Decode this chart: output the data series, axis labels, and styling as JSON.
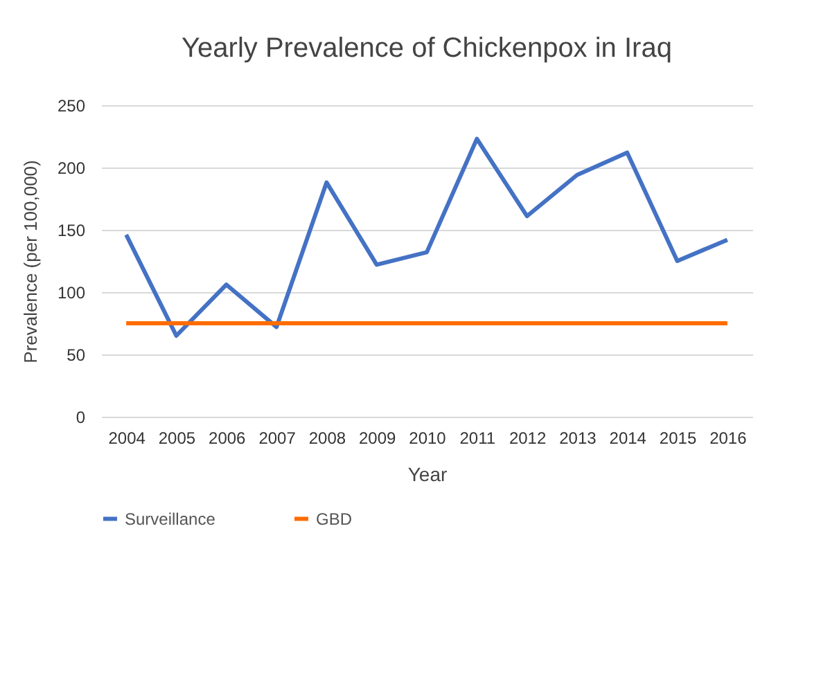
{
  "chart_data": {
    "type": "line",
    "title": "Yearly Prevalence of Chickenpox in Iraq",
    "xlabel": "Year",
    "ylabel": "Prevalence (per 100,000)",
    "categories": [
      "2004",
      "2005",
      "2006",
      "2007",
      "2008",
      "2009",
      "2010",
      "2011",
      "2012",
      "2013",
      "2014",
      "2015",
      "2016"
    ],
    "series": [
      {
        "name": "Surveillance",
        "color": "#4472c4",
        "values": [
          146,
          65,
          106,
          72,
          188,
          122,
          132,
          223,
          161,
          194,
          212,
          125,
          142
        ]
      },
      {
        "name": "GBD",
        "color": "#ff6d00",
        "values": [
          75,
          75,
          75,
          75,
          75,
          75,
          75,
          75,
          75,
          75,
          75,
          75,
          75
        ]
      }
    ],
    "ylim": [
      0,
      250
    ],
    "yticks": [
      0,
      50,
      100,
      150,
      200,
      250
    ],
    "grid": "y",
    "legend": "bottom",
    "marker": "none",
    "line_style": "solid"
  }
}
